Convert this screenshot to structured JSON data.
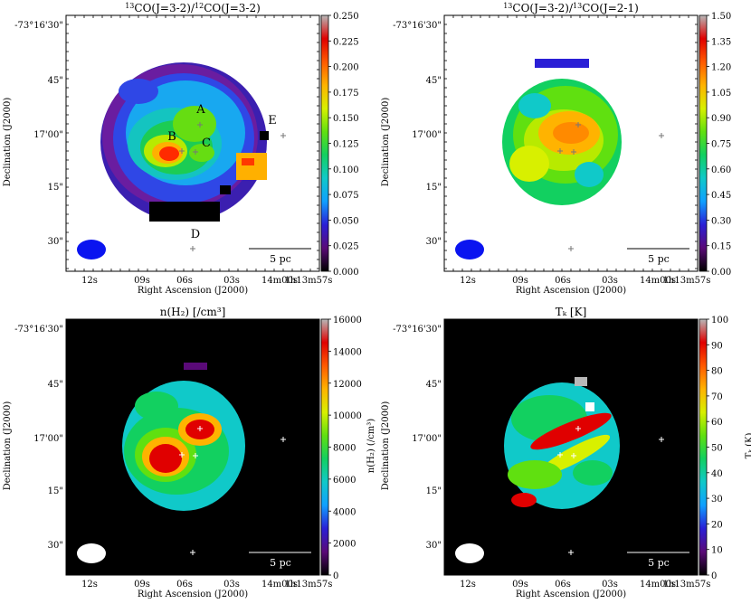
{
  "panels": [
    {
      "id": "co_ratio_32",
      "title_text": "CO(J=3-2)/",
      "title_sup1": "13",
      "title_sup2": "12",
      "title_tail": "CO(J=3-2)",
      "xlabel": "Right Ascension (J2000)",
      "ylabel": "Declination (J2000)",
      "colorbar_label": "",
      "colorbar_ticks": [
        "0.000",
        "0.025",
        "0.050",
        "0.075",
        "0.100",
        "0.125",
        "0.150",
        "0.175",
        "0.200",
        "0.225",
        "0.250"
      ],
      "background": "white",
      "beam_color": "#0a14f0",
      "source_labels": [
        "A",
        "B",
        "C",
        "D",
        "E"
      ],
      "peak_value": 0.25
    },
    {
      "id": "co_ratio_13",
      "title_text": "CO(J=3-2)/",
      "title_sup1": "13",
      "title_sup2": "13",
      "title_tail": "CO(J=2-1)",
      "xlabel": "Right Ascension (J2000)",
      "ylabel": "Declination (J2000)",
      "colorbar_label": "",
      "colorbar_ticks": [
        "0.00",
        "0.15",
        "0.30",
        "0.45",
        "0.60",
        "0.75",
        "0.90",
        "1.05",
        "1.20",
        "1.35",
        "1.50"
      ],
      "background": "white",
      "beam_color": "#0a14f0",
      "source_labels": [],
      "peak_value": 1.5
    },
    {
      "id": "density",
      "title_text": "n(H₂) [/cm³]",
      "xlabel": "Right Ascension (J2000)",
      "ylabel": "Declination (J2000)",
      "colorbar_label": "n(H₂) (/cm³)",
      "colorbar_ticks": [
        "0",
        "2000",
        "4000",
        "6000",
        "8000",
        "10000",
        "12000",
        "14000",
        "16000"
      ],
      "background": "black",
      "beam_color": "#ffffff",
      "source_labels": [],
      "peak_value": 16000
    },
    {
      "id": "temperature",
      "title_text": "Tₖ [K]",
      "xlabel": "Right Ascension (J2000)",
      "ylabel": "Declination (J2000)",
      "colorbar_label": "Tₖ (K)",
      "colorbar_ticks": [
        "0",
        "10",
        "20",
        "30",
        "40",
        "50",
        "60",
        "70",
        "80",
        "90",
        "100"
      ],
      "background": "black",
      "beam_color": "#ffffff",
      "source_labels": [],
      "peak_value": 100
    }
  ],
  "axes": {
    "ra_ticks": [
      "12s",
      "09s",
      "06s",
      "03s",
      "14m00s",
      "1h13m57s"
    ],
    "dec_ticks": [
      "-73°16'30\"",
      "45\"",
      "17'00\"",
      "15\"",
      "30\""
    ]
  },
  "scale_bar_label": "5 pc",
  "colormap": [
    "#000000",
    "#5a0a78",
    "#2a1fd6",
    "#10a0ff",
    "#10c9c9",
    "#12d060",
    "#60e010",
    "#d8f000",
    "#ffb300",
    "#ff5a00",
    "#e00000",
    "#b8b8b8"
  ],
  "chart_data": [
    {
      "type": "heatmap",
      "title": "13CO(J=3-2)/12CO(J=3-2)",
      "xlabel": "Right Ascension (J2000)",
      "ylabel": "Declination (J2000)",
      "x_ticks": [
        "12s",
        "09s",
        "06s",
        "03s",
        "14m00s",
        "1h13m57s"
      ],
      "y_ticks": [
        "-73°16'30\"",
        "45\"",
        "17'00\"",
        "15\"",
        "30\""
      ],
      "colorbar_range": [
        0.0,
        0.25
      ],
      "annotations": [
        "A",
        "B",
        "C",
        "D",
        "E",
        "5 pc"
      ]
    },
    {
      "type": "heatmap",
      "title": "13CO(J=3-2)/13CO(J=2-1)",
      "xlabel": "Right Ascension (J2000)",
      "ylabel": "Declination (J2000)",
      "x_ticks": [
        "12s",
        "09s",
        "06s",
        "03s",
        "14m00s",
        "1h13m57s"
      ],
      "y_ticks": [
        "-73°16'30\"",
        "45\"",
        "17'00\"",
        "15\"",
        "30\""
      ],
      "colorbar_range": [
        0.0,
        1.5
      ],
      "annotations": [
        "5 pc"
      ]
    },
    {
      "type": "heatmap",
      "title": "n(H2) [/cm3]",
      "xlabel": "Right Ascension (J2000)",
      "ylabel": "Declination (J2000)",
      "x_ticks": [
        "12s",
        "09s",
        "06s",
        "03s",
        "14m00s",
        "1h13m57s"
      ],
      "y_ticks": [
        "-73°16'30\"",
        "45\"",
        "17'00\"",
        "15\"",
        "30\""
      ],
      "colorbar_label": "n(H2) (/cm3)",
      "colorbar_range": [
        0,
        16000
      ],
      "annotations": [
        "5 pc"
      ]
    },
    {
      "type": "heatmap",
      "title": "Tk [K]",
      "xlabel": "Right Ascension (J2000)",
      "ylabel": "Declination (J2000)",
      "x_ticks": [
        "12s",
        "09s",
        "06s",
        "03s",
        "14m00s",
        "1h13m57s"
      ],
      "y_ticks": [
        "-73°16'30\"",
        "45\"",
        "17'00\"",
        "15\"",
        "30\""
      ],
      "colorbar_label": "Tk (K)",
      "colorbar_range": [
        0,
        100
      ],
      "annotations": [
        "5 pc"
      ]
    }
  ]
}
